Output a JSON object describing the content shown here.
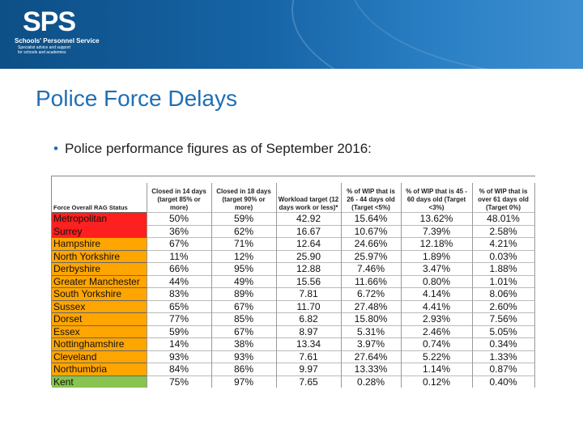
{
  "logo": {
    "mark": "SPS",
    "name": "Schools' Personnel Service",
    "tagline_line1": "Specialist advice and support",
    "tagline_line2": "for schools and academies"
  },
  "slide": {
    "title": "Police Force Delays",
    "bullet": "Police performance figures as of September 2016:"
  },
  "table": {
    "headers": [
      "Force Overall RAG Status",
      "Closed in 14 days (target 85% or more)",
      "Closed in 18 days (target 90% or more)",
      "Workload target (12 days work or less)*",
      "% of WIP that is 26 - 44 days old (Target <5%)",
      "% of WIP that is 45 - 60 days old (Target <3%)",
      "% of WIP that is over 61 days old (Target 0%)"
    ],
    "rows": [
      {
        "status": "red",
        "cells": [
          "Metropolitan",
          "50%",
          "59%",
          "42.92",
          "15.64%",
          "13.62%",
          "48.01%"
        ]
      },
      {
        "status": "red",
        "cells": [
          "Surrey",
          "36%",
          "62%",
          "16.67",
          "10.67%",
          "7.39%",
          "2.58%"
        ]
      },
      {
        "status": "orange",
        "cells": [
          "Hampshire",
          "67%",
          "71%",
          "12.64",
          "24.66%",
          "12.18%",
          "4.21%"
        ]
      },
      {
        "status": "orange",
        "cells": [
          "North Yorkshire",
          "11%",
          "12%",
          "25.90",
          "25.97%",
          "1.89%",
          "0.03%"
        ]
      },
      {
        "status": "orange",
        "cells": [
          "Derbyshire",
          "66%",
          "95%",
          "12.88",
          "7.46%",
          "3.47%",
          "1.88%"
        ]
      },
      {
        "status": "orange",
        "cells": [
          "Greater Manchester",
          "44%",
          "49%",
          "15.56",
          "11.66%",
          "0.80%",
          "1.01%"
        ]
      },
      {
        "status": "orange",
        "cells": [
          "South Yorkshire",
          "83%",
          "89%",
          "7.81",
          "6.72%",
          "4.14%",
          "8.06%"
        ]
      },
      {
        "status": "orange",
        "cells": [
          "Sussex",
          "65%",
          "67%",
          "11.70",
          "27.48%",
          "4.41%",
          "2.60%"
        ]
      },
      {
        "status": "orange",
        "cells": [
          "Dorset",
          "77%",
          "85%",
          "6.82",
          "15.80%",
          "2.93%",
          "7.56%"
        ]
      },
      {
        "status": "orange",
        "cells": [
          "Essex",
          "59%",
          "67%",
          "8.97",
          "5.31%",
          "2.46%",
          "5.05%"
        ]
      },
      {
        "status": "orange",
        "cells": [
          "Nottinghamshire",
          "14%",
          "38%",
          "13.34",
          "3.97%",
          "0.74%",
          "0.34%"
        ]
      },
      {
        "status": "orange",
        "cells": [
          "Cleveland",
          "93%",
          "93%",
          "7.61",
          "27.64%",
          "5.22%",
          "1.33%"
        ]
      },
      {
        "status": "orange",
        "cells": [
          "Northumbria",
          "84%",
          "86%",
          "9.97",
          "13.33%",
          "1.14%",
          "0.87%"
        ]
      },
      {
        "status": "green",
        "cells": [
          "Kent",
          "75%",
          "97%",
          "7.65",
          "0.28%",
          "0.12%",
          "0.40%"
        ]
      }
    ]
  },
  "colors": {
    "red": "#ff1f1f",
    "orange": "#ffa500",
    "green": "#88c44f",
    "title": "#1f6fb5"
  }
}
